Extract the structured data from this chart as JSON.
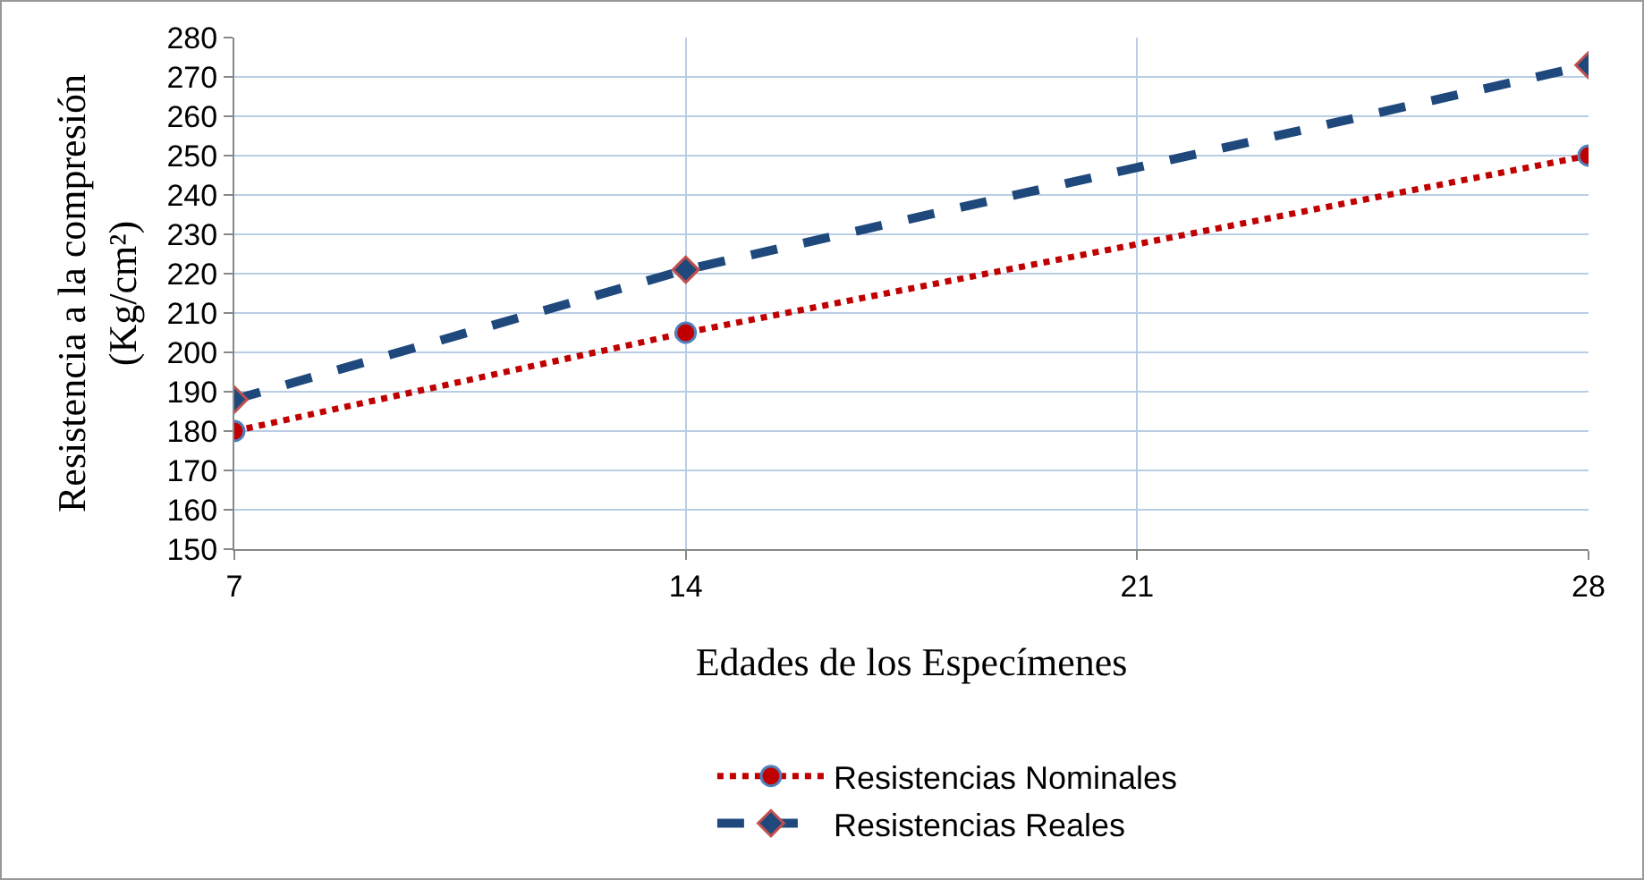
{
  "chart_data": {
    "type": "line",
    "xlabel": "Edades de los Especímenes",
    "ylabel": "Resistencia a la compresión\n(Kg/cm²)",
    "x": [
      7,
      14,
      28
    ],
    "xlim": [
      7,
      28
    ],
    "xticks": [
      7,
      14,
      21,
      28
    ],
    "ylim": [
      150,
      280
    ],
    "yticks": [
      150,
      160,
      170,
      180,
      190,
      200,
      210,
      220,
      230,
      240,
      250,
      260,
      270,
      280
    ],
    "grid": true,
    "legend": "bottom",
    "series": [
      {
        "name": "Resistencias Nominales",
        "color": "#c00000",
        "values": [
          180,
          205,
          250
        ],
        "line_style": "dotted",
        "marker": "circle"
      },
      {
        "name": "Resistencias Reales",
        "color": "#1f497d",
        "values": [
          188,
          221,
          273
        ],
        "line_style": "dashed",
        "marker": "diamond"
      }
    ]
  }
}
